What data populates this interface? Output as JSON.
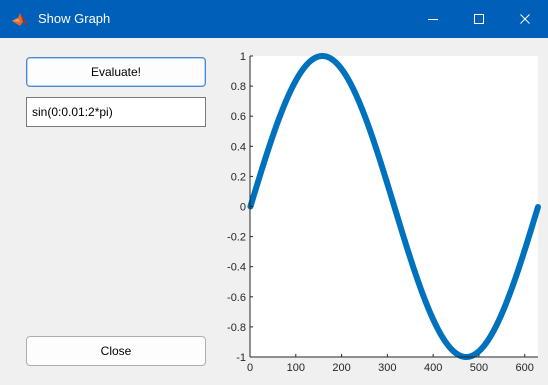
{
  "window": {
    "title": "Show Graph",
    "icon": "matlab-logo-icon",
    "controls": [
      "minimize-icon",
      "maximize-icon",
      "close-icon"
    ]
  },
  "controls": {
    "evaluate_label": "Evaluate!",
    "expression_value": "sin(0:0.01:2*pi)",
    "close_label": "Close"
  },
  "colors": {
    "titlebar": "#005fb8",
    "line": "#0072bd",
    "background": "#f0f0f0"
  },
  "chart_data": {
    "type": "line",
    "title": "",
    "xlabel": "",
    "ylabel": "",
    "xlim": [
      0,
      629
    ],
    "ylim": [
      -1,
      1
    ],
    "xticks": [
      "0",
      "100",
      "200",
      "300",
      "400",
      "500",
      "600"
    ],
    "yticks": [
      "1",
      "0.8",
      "0.6",
      "0.4",
      "0.2",
      "0",
      "-0.2",
      "-0.4",
      "-0.6",
      "-0.8",
      "-1"
    ],
    "grid": false,
    "series": [
      {
        "function": "sin(0:0.01:2*pi)",
        "x_start": 1,
        "x_end": 629,
        "x": [
          1,
          50,
          100,
          158,
          200,
          250,
          300,
          315,
          350,
          400,
          472,
          500,
          550,
          600,
          629
        ],
        "y": [
          0,
          0.48,
          0.84,
          1.0,
          0.91,
          0.6,
          0.14,
          0.0,
          -0.35,
          -0.76,
          -1.0,
          -0.96,
          -0.71,
          -0.28,
          0
        ]
      }
    ]
  }
}
